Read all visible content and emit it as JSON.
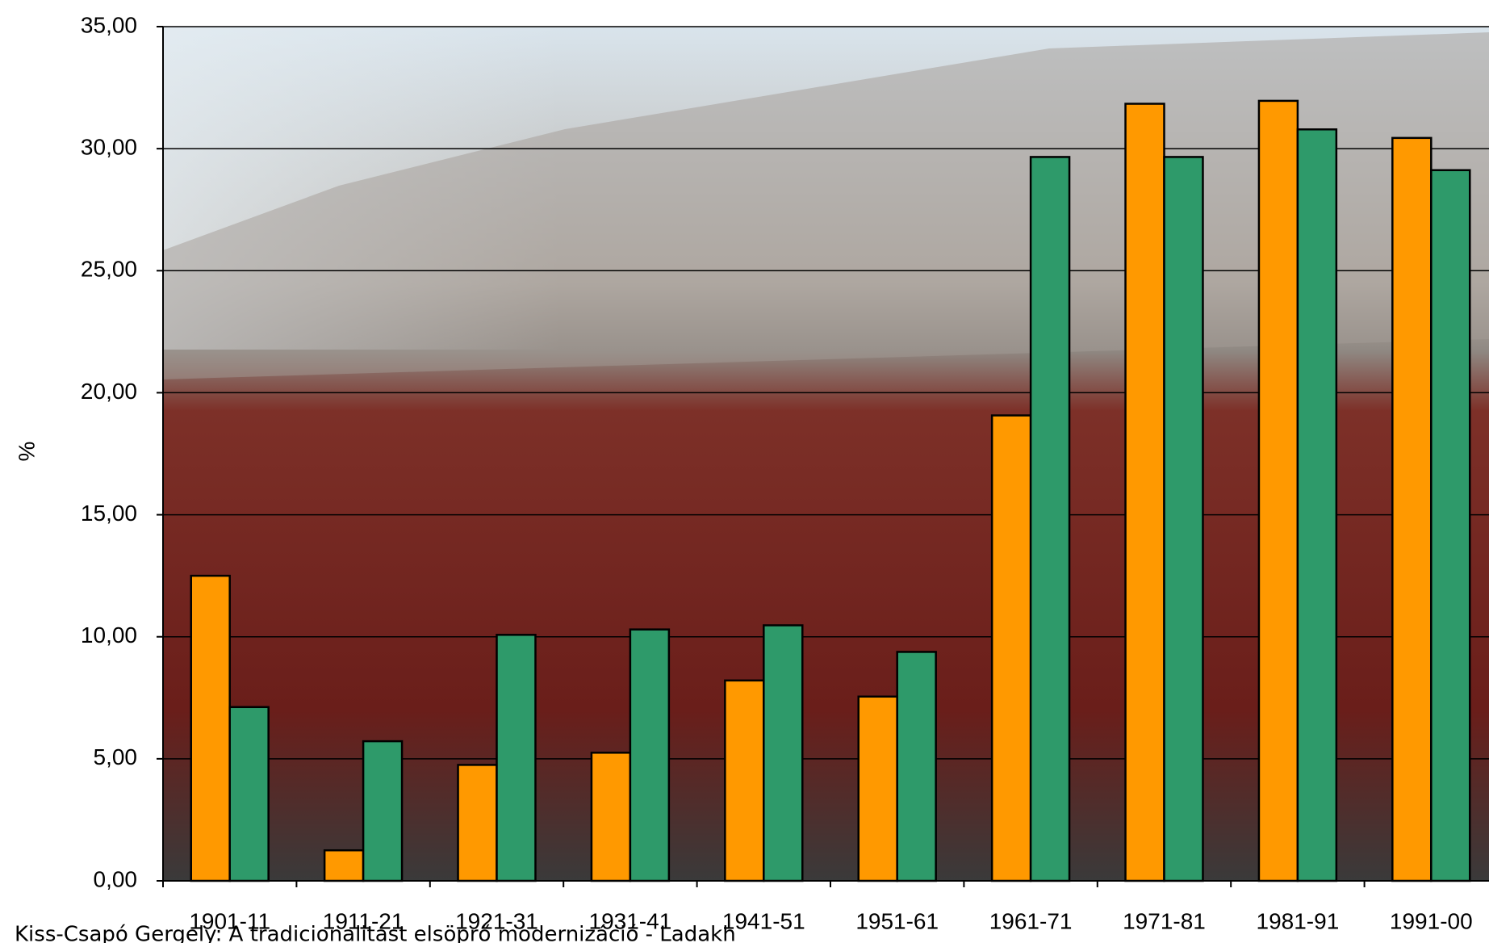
{
  "chart_data": {
    "type": "bar",
    "y_label": "%",
    "footer": "Kiss-Csapó Gergely: A tradicionalitást elsöprő modernizáció - Ladakh",
    "categories": [
      "1901-11",
      "1911-21",
      "1921-31",
      "1931-41",
      "1941-51",
      "1951-61",
      "1961-71",
      "1971-81",
      "1981-91",
      "1991-00"
    ],
    "series": [
      {
        "color": "#ff9900",
        "values": [
          12.5,
          1.25,
          4.75,
          5.25,
          8.21,
          7.55,
          19.07,
          31.84,
          31.96,
          30.44
        ]
      },
      {
        "color": "#2e9a6a",
        "values": [
          7.12,
          5.72,
          10.08,
          10.3,
          10.47,
          9.38,
          29.66,
          29.66,
          30.79,
          29.12
        ]
      }
    ],
    "ylim": [
      0,
      35
    ],
    "yticks": [
      {
        "value": 0,
        "label": "0,00"
      },
      {
        "value": 5,
        "label": "5,00"
      },
      {
        "value": 10,
        "label": "10,00"
      },
      {
        "value": 15,
        "label": "15,00"
      },
      {
        "value": 20,
        "label": "20,00"
      },
      {
        "value": 25,
        "label": "25,00"
      },
      {
        "value": 30,
        "label": "30,00"
      },
      {
        "value": 35,
        "label": "35,00"
      }
    ],
    "grid": true
  }
}
